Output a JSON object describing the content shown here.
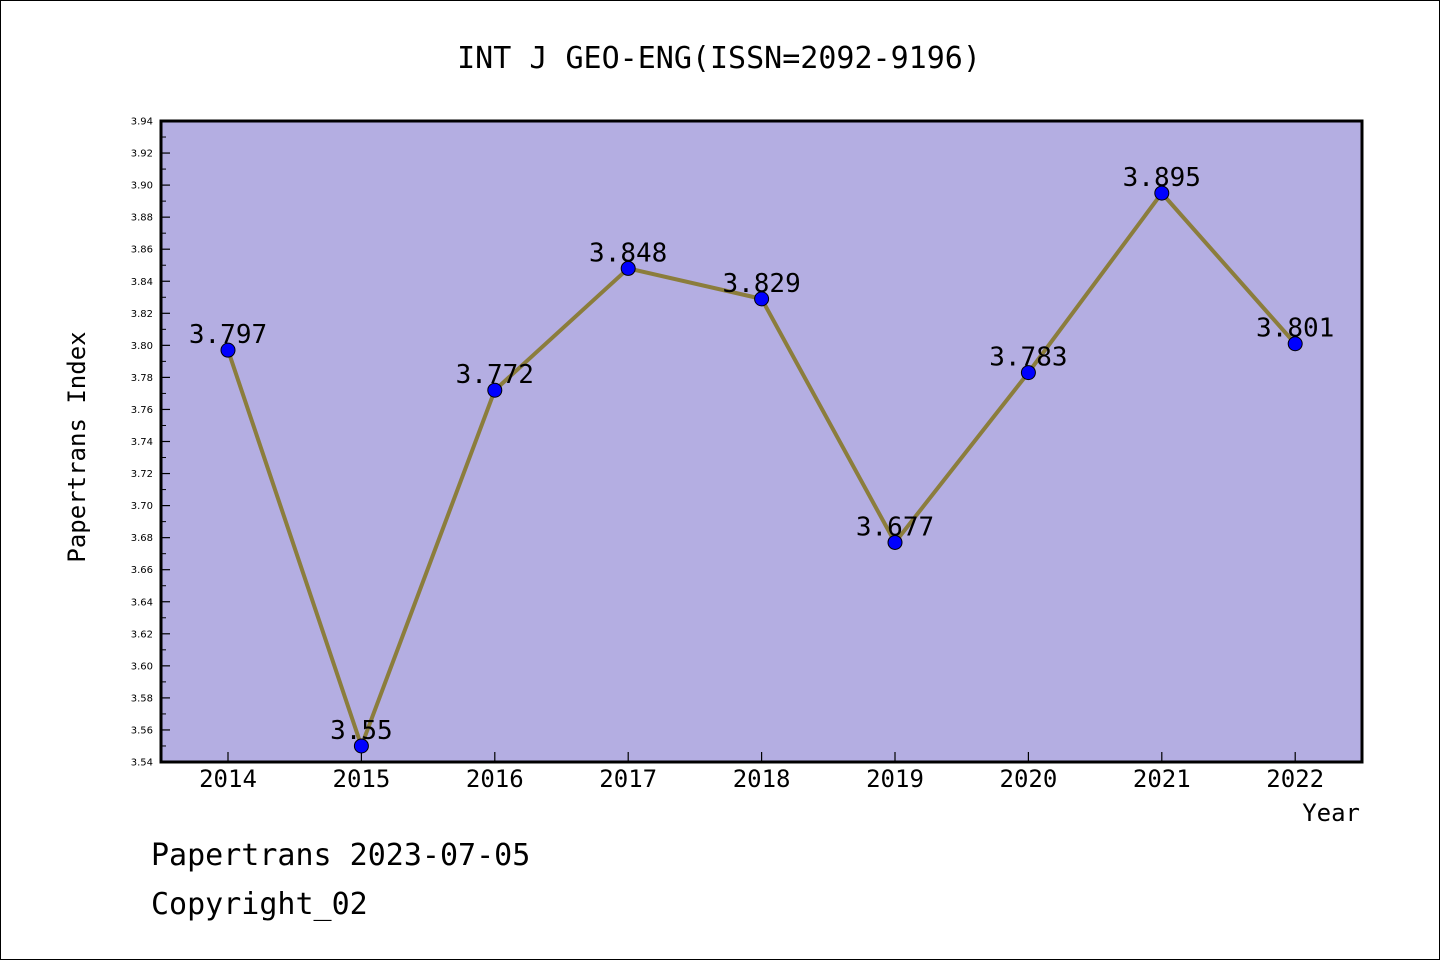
{
  "chart_data": {
    "type": "line",
    "title": "INT J GEO-ENG(ISSN=2092-9196)",
    "xlabel": "Year",
    "ylabel": "Papertrans Index",
    "categories": [
      "2014",
      "2015",
      "2016",
      "2017",
      "2018",
      "2019",
      "2020",
      "2021",
      "2022"
    ],
    "values": [
      3.797,
      3.55,
      3.772,
      3.848,
      3.829,
      3.677,
      3.783,
      3.895,
      3.801
    ],
    "data_labels": [
      "3.797",
      "3.55",
      "3.772",
      "3.848",
      "3.829",
      "3.677",
      "3.783",
      "3.895",
      "3.801"
    ],
    "ylim": [
      3.54,
      3.94
    ],
    "yticks": [
      "3.54",
      "3.56",
      "3.58",
      "3.60",
      "3.62",
      "3.64",
      "3.66",
      "3.68",
      "3.70",
      "3.72",
      "3.74",
      "3.76",
      "3.78",
      "3.80",
      "3.82",
      "3.84",
      "3.86",
      "3.88",
      "3.90",
      "3.92",
      "3.94"
    ],
    "grid": false,
    "legend": "none",
    "colors": {
      "plot_background": "#b4aee2",
      "line": "#8b7d3c",
      "marker": "#0000ff",
      "axis": "#000000"
    }
  },
  "footer": {
    "date_line": "Papertrans 2023-07-05",
    "copyright": "Copyright_02"
  }
}
